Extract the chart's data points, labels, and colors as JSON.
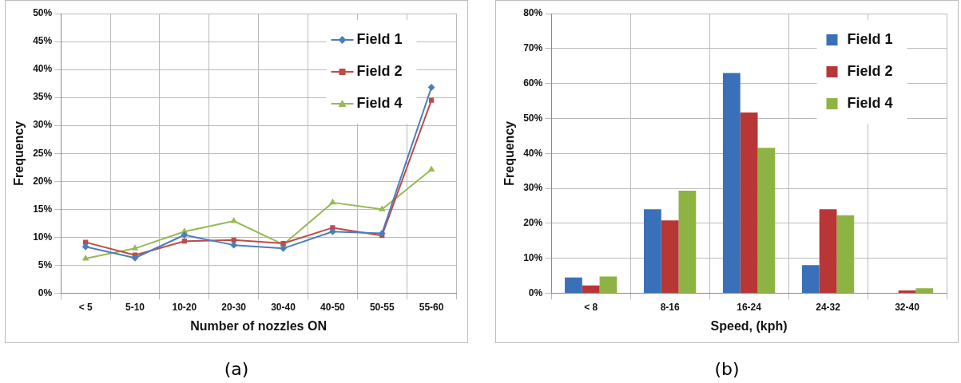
{
  "chart_data": [
    {
      "type": "line",
      "xlabel": "Number of nozzles ON",
      "ylabel": "Frequency",
      "annotations": [
        "(a)"
      ],
      "categories": [
        "< 5",
        "5-10",
        "10-20",
        "20-30",
        "30-40",
        "40-50",
        "50-55",
        "55-60"
      ],
      "series": [
        {
          "name": "Field 1",
          "color": "#4a7ebb",
          "marker": "diamond",
          "values": [
            8.3,
            6.3,
            10.4,
            8.6,
            8.0,
            11.0,
            10.7,
            36.8
          ]
        },
        {
          "name": "Field 2",
          "color": "#be4b48",
          "marker": "square",
          "values": [
            9.1,
            6.8,
            9.3,
            9.5,
            8.9,
            11.7,
            10.3,
            34.5
          ]
        },
        {
          "name": "Field 4",
          "color": "#98b954",
          "marker": "triangle",
          "values": [
            6.2,
            8.0,
            11.0,
            12.9,
            8.7,
            16.2,
            15.0,
            22.1
          ]
        }
      ],
      "ylim": [
        0,
        50
      ],
      "yticks": [
        {
          "value": 0,
          "label": "0%"
        },
        {
          "value": 5,
          "label": "5%"
        },
        {
          "value": 10,
          "label": "10%"
        },
        {
          "value": 15,
          "label": "15%"
        },
        {
          "value": 20,
          "label": "20%"
        },
        {
          "value": 25,
          "label": "25%"
        },
        {
          "value": 30,
          "label": "30%"
        },
        {
          "value": 35,
          "label": "35%"
        },
        {
          "value": 40,
          "label": "40%"
        },
        {
          "value": 45,
          "label": "45%"
        },
        {
          "value": 50,
          "label": "50%"
        }
      ],
      "grid": true,
      "legend": "top right"
    },
    {
      "type": "bar",
      "xlabel": "Speed, (kph)",
      "ylabel": "Frequency",
      "annotations": [
        "(b)"
      ],
      "categories": [
        "< 8",
        "8-16",
        "16-24",
        "24-32",
        "32-40"
      ],
      "series": [
        {
          "name": "Field 1",
          "color": "#3a70b8",
          "values": [
            4.5,
            24.0,
            63.0,
            8.0,
            0.1
          ]
        },
        {
          "name": "Field 2",
          "color": "#b83636",
          "values": [
            2.2,
            20.8,
            51.7,
            24.0,
            0.8
          ]
        },
        {
          "name": "Field 4",
          "color": "#8db443",
          "values": [
            4.8,
            29.3,
            41.6,
            22.3,
            1.4
          ]
        }
      ],
      "ylim": [
        0,
        80
      ],
      "yticks": [
        {
          "value": 0,
          "label": "0%"
        },
        {
          "value": 10,
          "label": "10%"
        },
        {
          "value": 20,
          "label": "20%"
        },
        {
          "value": 30,
          "label": "30%"
        },
        {
          "value": 40,
          "label": "40%"
        },
        {
          "value": 50,
          "label": "50%"
        },
        {
          "value": 60,
          "label": "60%"
        },
        {
          "value": 70,
          "label": "70%"
        },
        {
          "value": 80,
          "label": "80%"
        }
      ],
      "grid": true,
      "legend": "top right"
    }
  ]
}
